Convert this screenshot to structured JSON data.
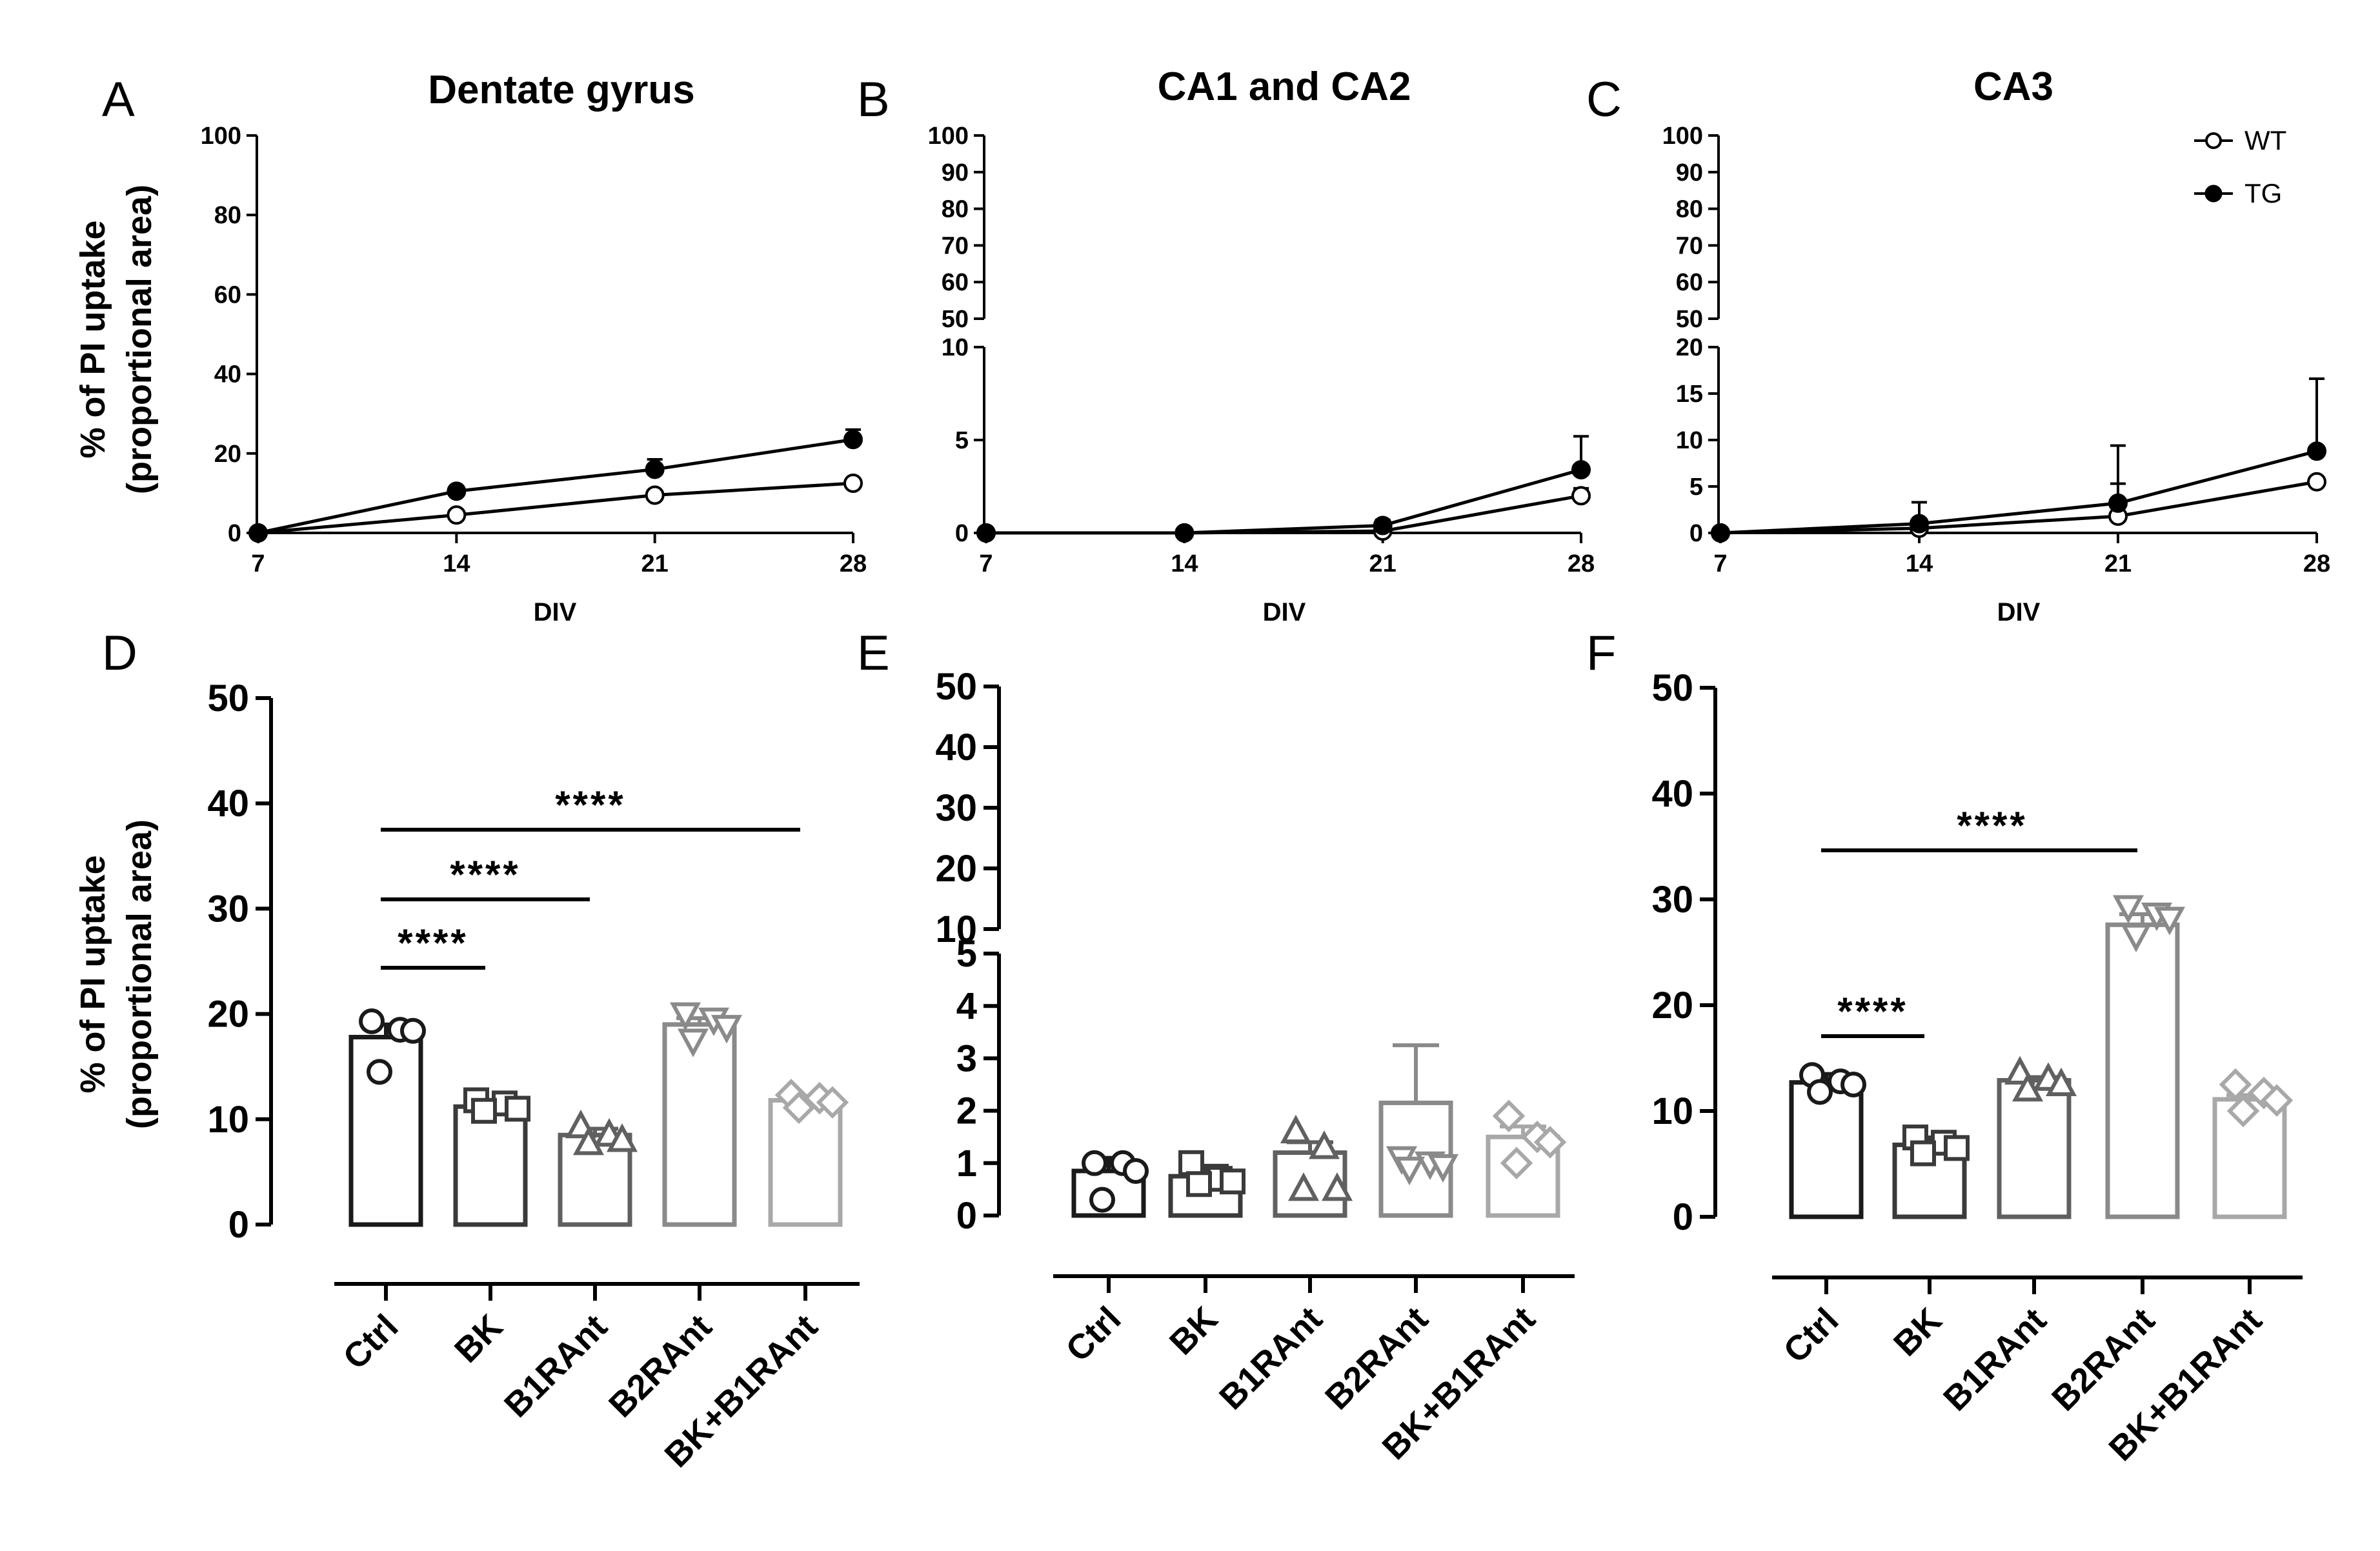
{
  "figure": {
    "ylabel_line1": "% of PI uptake",
    "ylabel_line2": "(proportional area)",
    "xlabel": "DIV"
  },
  "chart_data": [
    {
      "panel": "A",
      "type": "line",
      "title": "Dentate gyrus",
      "xlabel": "DIV",
      "ylabel": "% of PI uptake (proportional area)",
      "x": [
        7,
        14,
        21,
        28
      ],
      "xticks": [
        "7",
        "14",
        "21",
        "28"
      ],
      "ylim": [
        0,
        100
      ],
      "yticks": [
        "0",
        "20",
        "40",
        "60",
        "80",
        "100"
      ],
      "series": [
        {
          "name": "WT",
          "marker": "open-circle",
          "values": [
            0,
            4.5,
            9.5,
            12.5
          ],
          "err": [
            0,
            0.5,
            1.0,
            1.0
          ]
        },
        {
          "name": "TG",
          "marker": "filled-circle",
          "values": [
            0,
            10.5,
            16,
            23.5
          ],
          "err": [
            0,
            0.8,
            2.5,
            2.5
          ]
        }
      ]
    },
    {
      "panel": "B",
      "type": "line",
      "title": "CA1 and CA2",
      "xlabel": "DIV",
      "x": [
        7,
        14,
        21,
        28
      ],
      "xticks": [
        "7",
        "14",
        "21",
        "28"
      ],
      "ylim": [
        0,
        100
      ],
      "ybreak": [
        10,
        50
      ],
      "yticks_low": [
        "0",
        "5",
        "10"
      ],
      "yticks_high": [
        "50",
        "60",
        "70",
        "80",
        "90",
        "100"
      ],
      "series": [
        {
          "name": "WT",
          "marker": "open-circle",
          "values": [
            0,
            0,
            0.1,
            2.0
          ],
          "err": [
            0,
            0,
            0.2,
            0.4
          ]
        },
        {
          "name": "TG",
          "marker": "filled-circle",
          "values": [
            0,
            0,
            0.4,
            3.4
          ],
          "err": [
            0,
            0,
            0.3,
            1.8
          ]
        }
      ]
    },
    {
      "panel": "C",
      "type": "line",
      "title": "CA3",
      "xlabel": "DIV",
      "x": [
        7,
        14,
        21,
        28
      ],
      "xticks": [
        "7",
        "14",
        "21",
        "28"
      ],
      "ylim": [
        0,
        100
      ],
      "ybreak": [
        20,
        50
      ],
      "yticks_low": [
        "0",
        "5",
        "10",
        "15",
        "20"
      ],
      "yticks_high": [
        "50",
        "60",
        "70",
        "80",
        "90",
        "100"
      ],
      "legend": {
        "position": "top-right",
        "entries": [
          "WT",
          "TG"
        ]
      },
      "series": [
        {
          "name": "WT",
          "marker": "open-circle",
          "values": [
            0,
            0.5,
            1.8,
            5.5
          ],
          "err": [
            0,
            0.5,
            3.5,
            0.5
          ]
        },
        {
          "name": "TG",
          "marker": "filled-circle",
          "values": [
            0,
            1.0,
            3.2,
            8.8
          ],
          "err": [
            0,
            2.3,
            6.2,
            7.8
          ]
        }
      ]
    },
    {
      "panel": "D",
      "type": "bar",
      "ylabel": "% of PI uptake (proportional area)",
      "categories": [
        "Ctrl",
        "BK",
        "B1RAnt",
        "B2RAnt",
        "BK+B1RAnt"
      ],
      "ylim": [
        0,
        50
      ],
      "yticks": [
        "0",
        "10",
        "20",
        "30",
        "40",
        "50"
      ],
      "values": [
        17.8,
        11.2,
        8.5,
        19.0,
        11.8
      ],
      "err": [
        1.2,
        0.5,
        0.6,
        0.6,
        0.4
      ],
      "points": [
        [
          19.3,
          18.5,
          18.4,
          14.5
        ],
        [
          11.8,
          11.5,
          11.0,
          10.8
        ],
        [
          9.3,
          8.5,
          8.0,
          7.7
        ],
        [
          20.0,
          19.5,
          18.8,
          17.5
        ],
        [
          12.3,
          12.0,
          11.6,
          11.1
        ]
      ],
      "markers": [
        "circle",
        "square",
        "triangle-up",
        "triangle-down",
        "diamond"
      ],
      "significance": [
        {
          "from": 0,
          "to": 1,
          "label": "****"
        },
        {
          "from": 0,
          "to": 2,
          "label": "****"
        },
        {
          "from": 0,
          "to": 4,
          "label": "****"
        }
      ]
    },
    {
      "panel": "E",
      "type": "bar",
      "categories": [
        "Ctrl",
        "BK",
        "B1RAnt",
        "B2RAnt",
        "BK+B1RAnt"
      ],
      "ylim": [
        0,
        50
      ],
      "ybreak": [
        5,
        10
      ],
      "yticks_low": [
        "0",
        "1",
        "2",
        "3",
        "4",
        "5"
      ],
      "yticks_high": [
        "10",
        "20",
        "30",
        "40",
        "50"
      ],
      "values": [
        0.85,
        0.75,
        1.2,
        2.15,
        1.5
      ],
      "err": [
        0.25,
        0.2,
        0.2,
        1.1,
        0.2
      ],
      "points": [
        [
          1.0,
          1.0,
          0.85,
          0.3
        ],
        [
          1.0,
          0.7,
          0.65,
          0.6
        ],
        [
          1.6,
          1.3,
          0.5,
          0.5
        ],
        [
          1.1,
          1.0,
          0.95,
          0.9
        ],
        [
          1.9,
          1.5,
          1.4,
          1.0
        ]
      ],
      "markers": [
        "circle",
        "square",
        "triangle-up",
        "triangle-down",
        "diamond"
      ]
    },
    {
      "panel": "F",
      "type": "bar",
      "categories": [
        "Ctrl",
        "BK",
        "B1RAnt",
        "B2RAnt",
        "BK+B1RAnt"
      ],
      "ylim": [
        0,
        50
      ],
      "yticks": [
        "0",
        "10",
        "20",
        "30",
        "40",
        "50"
      ],
      "values": [
        12.7,
        6.8,
        12.9,
        27.6,
        11.1
      ],
      "err": [
        0.8,
        0.7,
        0.3,
        1.0,
        0.4
      ],
      "points": [
        [
          13.4,
          12.8,
          12.5,
          11.8
        ],
        [
          7.5,
          7.0,
          6.5,
          6.0
        ],
        [
          13.6,
          13.0,
          12.5,
          12.0
        ],
        [
          29.3,
          28.6,
          28.2,
          26.6
        ],
        [
          12.5,
          11.7,
          11.0,
          10.0
        ]
      ],
      "markers": [
        "circle",
        "square",
        "triangle-up",
        "triangle-down",
        "diamond"
      ],
      "significance": [
        {
          "from": 0,
          "to": 1,
          "label": "****"
        },
        {
          "from": 0,
          "to": 3,
          "label": "****"
        }
      ]
    }
  ]
}
